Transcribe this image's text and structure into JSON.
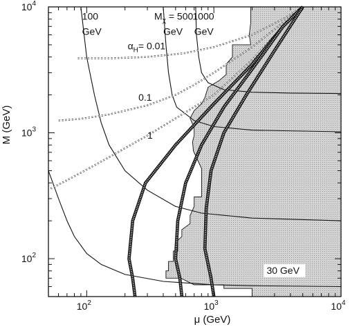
{
  "chart_data": {
    "type": "line",
    "x_scale": "log",
    "y_scale": "log",
    "xlim": [
      50,
      10000
    ],
    "ylim": [
      50,
      10000
    ],
    "xlabel": "μ  (GeV)",
    "ylabel": "M (GeV)",
    "x_ticks": [
      {
        "value": 100,
        "label": "10",
        "exp": "2"
      },
      {
        "value": 1000,
        "label": "10",
        "exp": "3"
      },
      {
        "value": 10000,
        "label": "10",
        "exp": "4"
      }
    ],
    "y_ticks": [
      {
        "value": 100,
        "label": "10",
        "exp": "2"
      },
      {
        "value": 1000,
        "label": "10",
        "exp": "3"
      },
      {
        "value": 10000,
        "label": "10",
        "exp": "4"
      }
    ],
    "shaded_region": {
      "description": "excluded",
      "boundary": [
        [
          1950,
          10000
        ],
        [
          1950,
          7500
        ],
        [
          1900,
          6000
        ],
        [
          1950,
          5000
        ],
        [
          1400,
          5000
        ],
        [
          1400,
          4000
        ],
        [
          1250,
          3500
        ],
        [
          1250,
          2900
        ],
        [
          1100,
          2600
        ],
        [
          900,
          2300
        ],
        [
          850,
          1900
        ],
        [
          800,
          1700
        ],
        [
          700,
          1500
        ],
        [
          650,
          1300
        ],
        [
          700,
          1100
        ],
        [
          700,
          950
        ],
        [
          680,
          850
        ],
        [
          690,
          720
        ],
        [
          800,
          520
        ],
        [
          800,
          310
        ],
        [
          700,
          310
        ],
        [
          700,
          260
        ],
        [
          650,
          220
        ],
        [
          650,
          190
        ],
        [
          560,
          170
        ],
        [
          560,
          150
        ],
        [
          520,
          140
        ],
        [
          520,
          115
        ],
        [
          480,
          115
        ],
        [
          480,
          95
        ],
        [
          440,
          95
        ],
        [
          440,
          80
        ],
        [
          420,
          80
        ],
        [
          420,
          70
        ],
        [
          550,
          70
        ],
        [
          700,
          62
        ],
        [
          1200,
          62
        ],
        [
          1200,
          58
        ],
        [
          2000,
          58
        ],
        [
          2000,
          50
        ],
        [
          10000,
          50
        ],
        [
          10000,
          10000
        ]
      ]
    },
    "series": [
      {
        "name": "100 GeV",
        "style": "solid",
        "x": [
          90,
          100,
          115,
          130,
          150,
          200,
          300,
          500,
          800,
          2000,
          10000
        ],
        "y": [
          10000,
          4000,
          2000,
          1200,
          800,
          500,
          350,
          260,
          230,
          210,
          200
        ]
      },
      {
        "name": "M_χ=500 GeV",
        "style": "solid",
        "x": [
          400,
          420,
          440,
          470,
          510,
          700,
          1000,
          2000,
          10000
        ],
        "y": [
          10000,
          5000,
          3000,
          2000,
          1600,
          1250,
          1120,
          1050,
          1020
        ]
      },
      {
        "name": "1000 GeV",
        "style": "solid",
        "x": [
          720,
          730,
          760,
          800,
          900,
          1200,
          2000,
          4000,
          10000
        ],
        "y": [
          10000,
          6000,
          4000,
          3000,
          2500,
          2200,
          2100,
          2070,
          2050
        ]
      },
      {
        "name": "30 GeV",
        "style": "solid",
        "x": [
          50,
          60,
          70,
          80,
          100,
          130,
          200,
          400,
          1000,
          2000,
          10000
        ],
        "y": [
          500,
          300,
          200,
          150,
          110,
          90,
          75,
          66,
          62,
          61,
          60
        ]
      },
      {
        "name": "α_H=0.01",
        "style": "dotted",
        "x": [
          85,
          100,
          150,
          300,
          600,
          1000,
          2000,
          3500,
          5000
        ],
        "y": [
          3900,
          3900,
          3900,
          4000,
          4300,
          4800,
          6000,
          8000,
          10000
        ]
      },
      {
        "name": "0.1",
        "style": "dotted",
        "x": [
          60,
          90,
          150,
          300,
          500,
          700,
          1000,
          2000,
          3500,
          5000
        ],
        "y": [
          1250,
          1290,
          1400,
          1650,
          2000,
          2400,
          3000,
          4800,
          7500,
          10000
        ]
      },
      {
        "name": "1",
        "style": "dotted",
        "x": [
          52,
          70,
          100,
          150,
          300,
          500,
          1000,
          2000,
          3500,
          5000
        ],
        "y": [
          360,
          420,
          510,
          640,
          950,
          1300,
          2000,
          3800,
          7000,
          10000
        ]
      },
      {
        "name": "",
        "style": "thick",
        "x": [
          240,
          230,
          215,
          230,
          290,
          500,
          1000,
          2000,
          3500,
          5000
        ],
        "y": [
          50,
          70,
          100,
          200,
          400,
          800,
          1700,
          3500,
          7000,
          10000
        ]
      },
      {
        "name": "",
        "style": "thick",
        "x": [
          560,
          540,
          500,
          520,
          600,
          800,
          1200,
          2000,
          3500,
          5000
        ],
        "y": [
          50,
          70,
          100,
          200,
          400,
          800,
          1600,
          3200,
          7000,
          10000
        ]
      },
      {
        "name": "",
        "style": "thick",
        "x": [
          1000,
          950,
          850,
          870,
          950,
          1200,
          1800,
          3000,
          5000
        ],
        "y": [
          50,
          70,
          120,
          250,
          500,
          1000,
          2000,
          4500,
          10000
        ]
      }
    ],
    "annotations": [
      {
        "text": "100",
        "x": 92,
        "y": 7900
      },
      {
        "text": "GeV",
        "x": 92,
        "y": 6000
      },
      {
        "text": "M",
        "x": 340,
        "y": 7900,
        "sub": "χ",
        "rest": " = 500"
      },
      {
        "text": "GeV",
        "x": 400,
        "y": 6000
      },
      {
        "text": "1000",
        "x": 680,
        "y": 7900
      },
      {
        "text": "GeV",
        "x": 700,
        "y": 6000
      },
      {
        "text": "α",
        "x": 210,
        "y": 4600,
        "sub": "H",
        "rest": "= 0.01"
      },
      {
        "text": "0.1",
        "x": 255,
        "y": 1800
      },
      {
        "text": "1",
        "x": 300,
        "y": 900
      },
      {
        "text": "30 GeV",
        "x": 2600,
        "y": 76
      }
    ]
  }
}
